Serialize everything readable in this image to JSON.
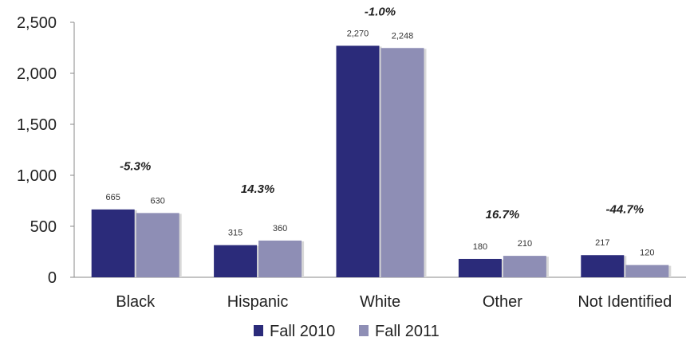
{
  "chart_data": {
    "type": "bar",
    "categories": [
      "Black",
      "Hispanic",
      "White",
      "Other",
      "Not Identified"
    ],
    "series": [
      {
        "name": "Fall 2010",
        "color": "#2b2b7a",
        "values": [
          665,
          315,
          2270,
          180,
          217
        ]
      },
      {
        "name": "Fall 2011",
        "color": "#8e8eb5",
        "values": [
          630,
          360,
          2248,
          210,
          120
        ]
      }
    ],
    "data_labels": [
      [
        "665",
        "315",
        "2,270",
        "180",
        "217"
      ],
      [
        "630",
        "360",
        "2,248",
        "210",
        "120"
      ]
    ],
    "change_labels": [
      "-5.3%",
      "14.3%",
      "-1.0%",
      "16.7%",
      "-44.7%"
    ],
    "change_values": [
      1050,
      830,
      2565,
      580,
      630
    ],
    "ylim": [
      0,
      2500
    ],
    "yticks": [
      0,
      500,
      1000,
      1500,
      2000,
      2500
    ],
    "ytick_labels": [
      "0",
      "500",
      "1,000",
      "1,500",
      "2,000",
      "2,500"
    ],
    "legend_position": "bottom",
    "grid": false
  }
}
